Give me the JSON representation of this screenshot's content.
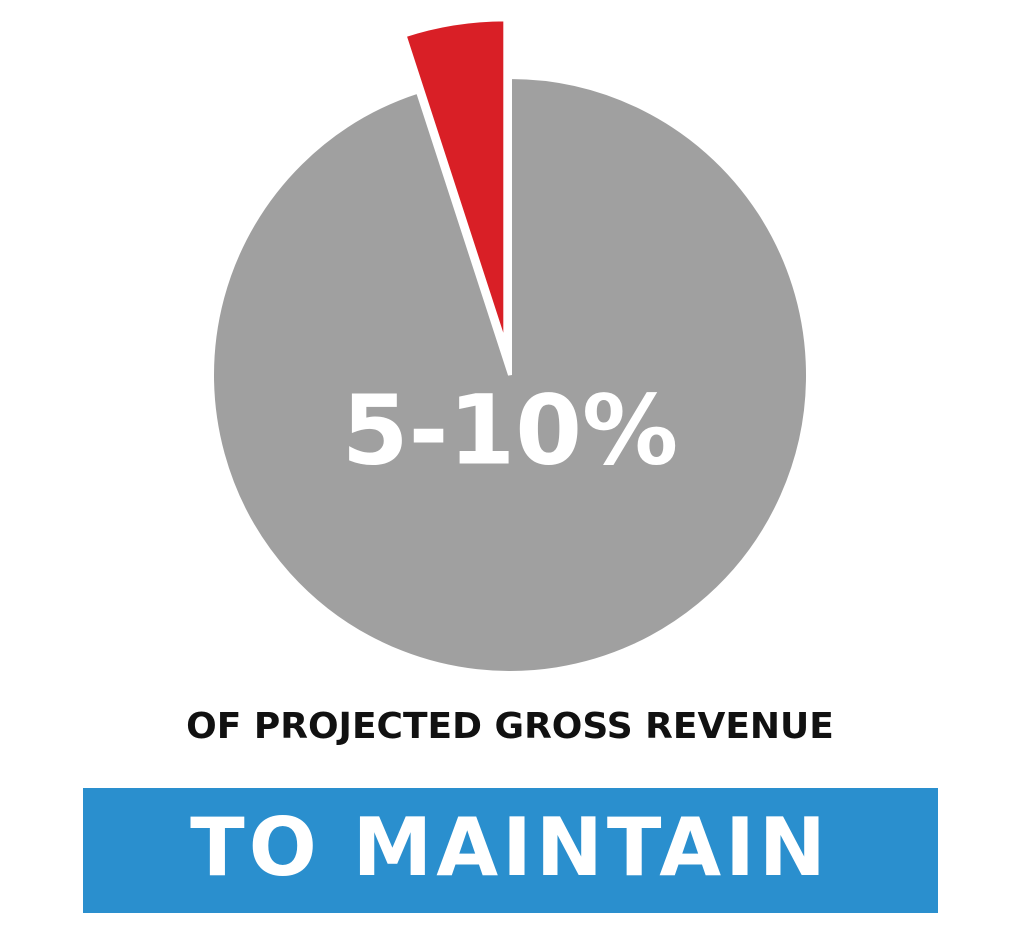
{
  "chart_data": {
    "type": "pie",
    "values": [
      95,
      5
    ],
    "colors": [
      "#a0a0a0",
      "#d91f26"
    ],
    "exploded": [
      false,
      true
    ],
    "annotation": "5-10%",
    "subtitle": "OF PROJECTED GROSS REVENUE",
    "banner": "TO MAINTAIN"
  }
}
